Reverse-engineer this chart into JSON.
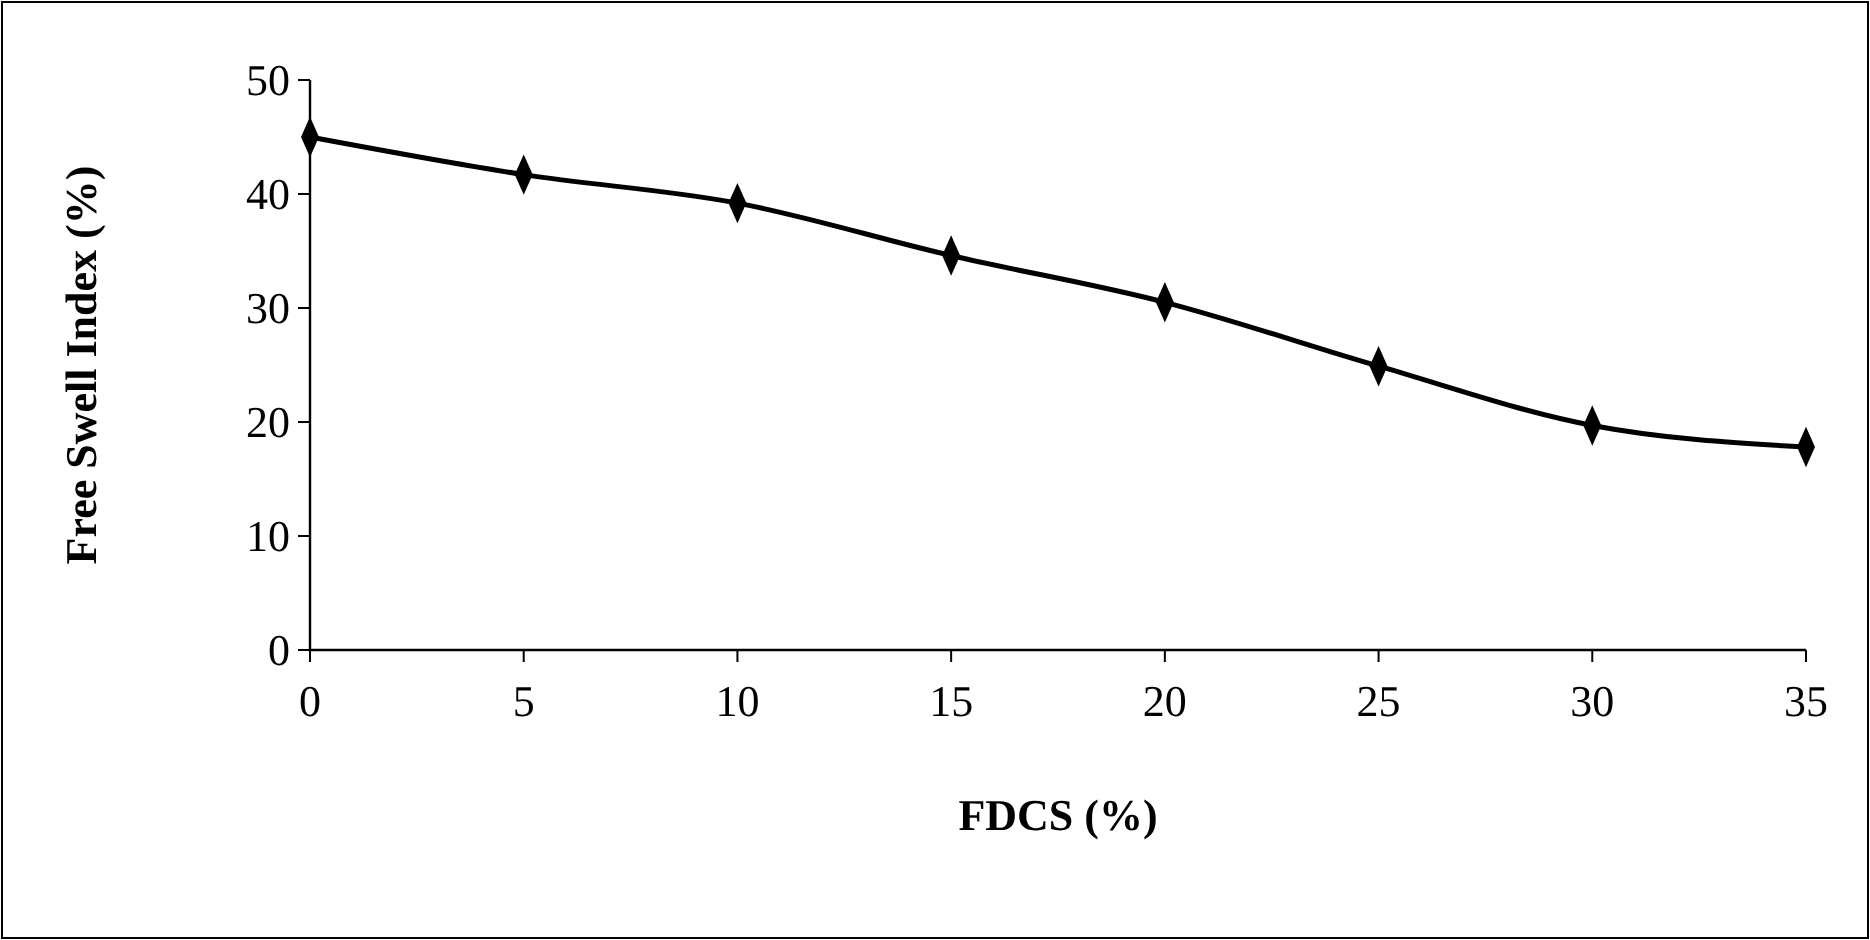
{
  "chart_data": {
    "type": "line",
    "xlabel": "FDCS (%)",
    "ylabel": "Free Swell Index (%)",
    "x": [
      0,
      5,
      10,
      15,
      20,
      25,
      30,
      35
    ],
    "series": [
      {
        "color": "#000000",
        "values": [
          45,
          41.7,
          39.2,
          34.6,
          30.5,
          24.9,
          19.7,
          17.8
        ]
      }
    ],
    "xlim": [
      0,
      35
    ],
    "xticks": [
      0,
      5,
      10,
      15,
      20,
      25,
      30,
      35
    ],
    "ylim": [
      0,
      50
    ],
    "yticks": [
      0,
      10,
      20,
      30,
      40,
      50
    ],
    "grid": false,
    "marker": "diamond",
    "line_style": "solid"
  }
}
